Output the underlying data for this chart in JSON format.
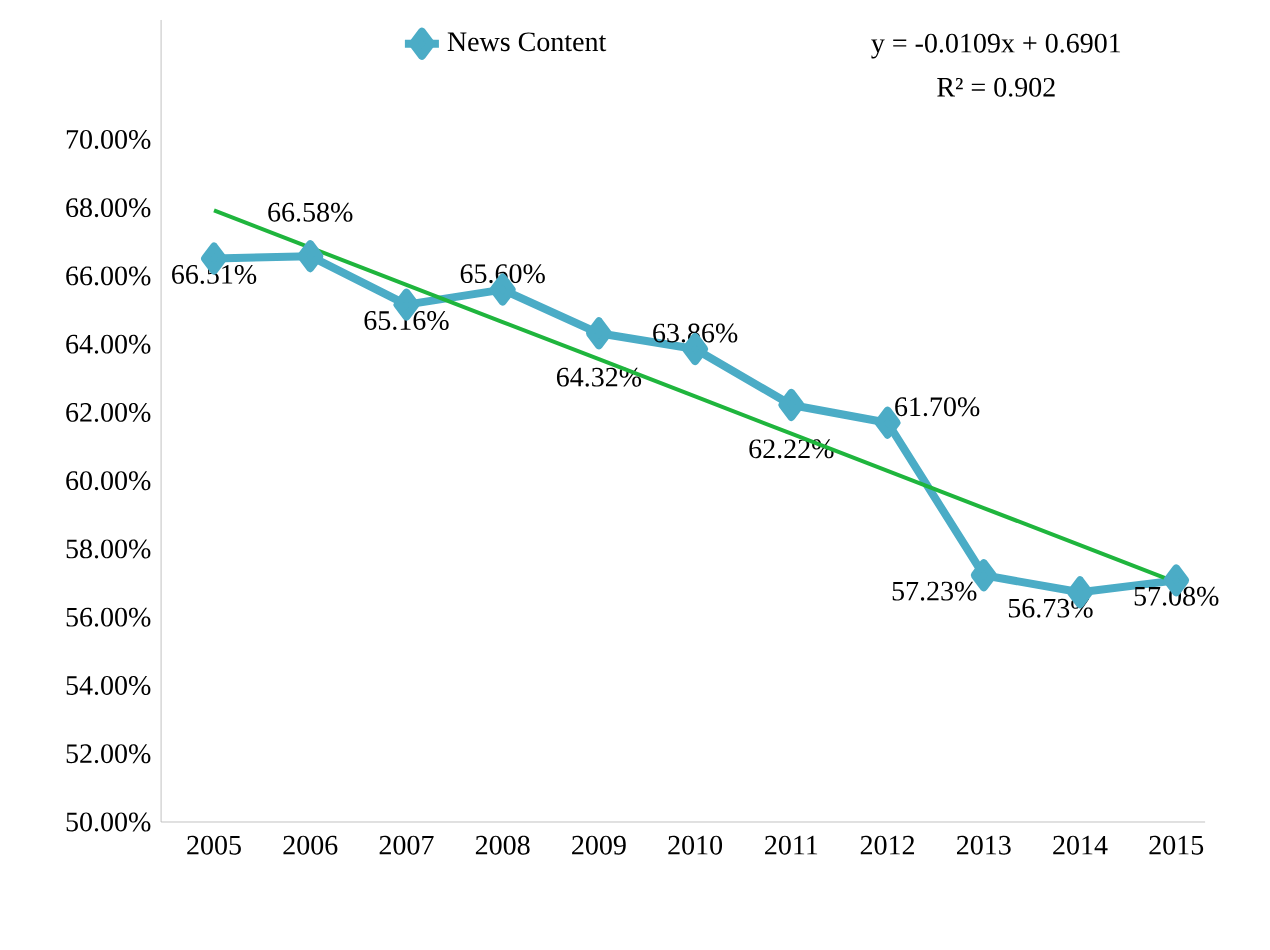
{
  "chart_data": {
    "type": "line",
    "categories": [
      "2005",
      "2006",
      "2007",
      "2008",
      "2009",
      "2010",
      "2011",
      "2012",
      "2013",
      "2014",
      "2015"
    ],
    "series": [
      {
        "name": "News Content",
        "color": "#4bacc6",
        "marker": "diamond",
        "values": [
          66.51,
          66.58,
          65.16,
          65.6,
          64.32,
          63.86,
          62.22,
          61.7,
          57.23,
          56.73,
          57.08
        ],
        "value_labels": [
          "66.51%",
          "66.58%",
          "65.16%",
          "65.60%",
          "64.32%",
          "63.86%",
          "62.22%",
          "61.70%",
          "57.23%",
          "56.73%",
          "57.08%"
        ]
      },
      {
        "type": "line",
        "color": "#1fb53d",
        "marker": "none",
        "values": [
          67.92,
          66.83,
          65.74,
          64.65,
          63.56,
          62.47,
          61.38,
          60.29,
          59.2,
          58.11,
          57.02
        ]
      }
    ],
    "ylim": [
      50,
      73.5
    ],
    "yticks": [
      {
        "value": 50,
        "label": "50.00%"
      },
      {
        "value": 52,
        "label": "52.00%"
      },
      {
        "value": 54,
        "label": "54.00%"
      },
      {
        "value": 56,
        "label": "56.00%"
      },
      {
        "value": 58,
        "label": "58.00%"
      },
      {
        "value": 60,
        "label": "60.00%"
      },
      {
        "value": 62,
        "label": "62.00%"
      },
      {
        "value": 64,
        "label": "64.00%"
      },
      {
        "value": 66,
        "label": "66.00%"
      },
      {
        "value": 68,
        "label": "68.00%"
      },
      {
        "value": 70,
        "label": "70.00%"
      }
    ],
    "legend": "top",
    "annotations": [
      "y = -0.0109x + 0.6901",
      "R² = 0.902"
    ]
  }
}
